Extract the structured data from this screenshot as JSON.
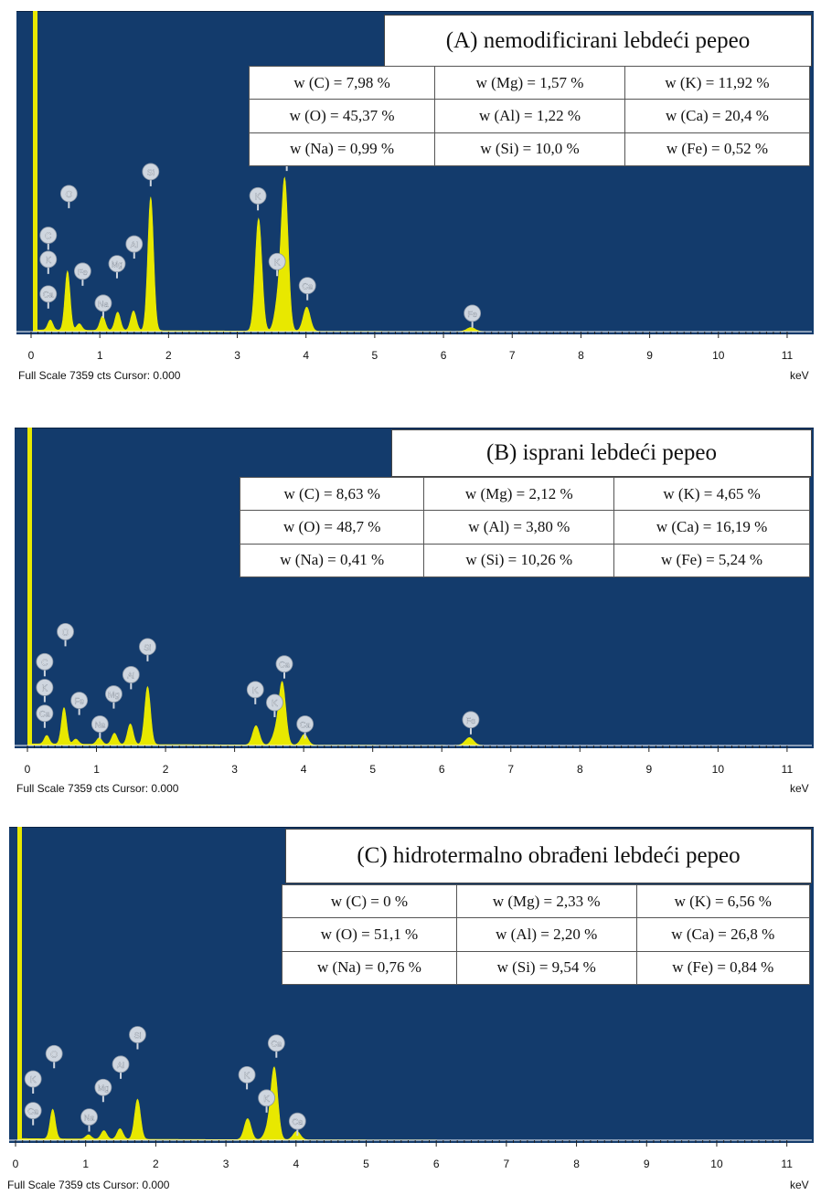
{
  "colors": {
    "plot_bg": "#133b6c",
    "spectrum": "#e8e800",
    "badge": "#cfd6df",
    "axis": "#ffffff"
  },
  "chart_data": [
    {
      "type": "area",
      "title": "(A) nemodificirani lebdeći pepeo",
      "xlabel": "keV",
      "xlim": [
        0,
        11.2
      ],
      "ylim": [
        0,
        7359
      ],
      "x_ticks": [
        "0",
        "1",
        "2",
        "3",
        "4",
        "5",
        "6",
        "7",
        "8",
        "9",
        "10",
        "11"
      ],
      "footer": "Full Scale 7359 cts Cursor: 0.000",
      "composition": [
        [
          "w (C) = 7,98 %",
          "w (Mg) = 1,57 %",
          "w (K) = 11,92 %"
        ],
        [
          "w (O) = 45,37 %",
          "w (Al) = 1,22 %",
          "w (Ca) = 20,4 %"
        ],
        [
          "w (Na) = 0,99 %",
          "w (Si) = 10,0 %",
          "w (Fe) = 0,52 %"
        ]
      ],
      "peaks": [
        {
          "label": "C",
          "x": 0.28,
          "y": 230
        },
        {
          "label": "O",
          "x": 0.53,
          "y": 1350
        },
        {
          "label": "Na",
          "x": 1.04,
          "y": 330
        },
        {
          "label": "Mg",
          "x": 1.26,
          "y": 420
        },
        {
          "label": "Al",
          "x": 1.49,
          "y": 450
        },
        {
          "label": "Si",
          "x": 1.74,
          "y": 3050
        },
        {
          "label": "K",
          "x": 3.31,
          "y": 2570
        },
        {
          "label": "K",
          "x": 3.59,
          "y": 600
        },
        {
          "label": "Ca",
          "x": 3.69,
          "y": 3430
        },
        {
          "label": "Ca",
          "x": 4.01,
          "y": 550
        },
        {
          "label": "Fe",
          "x": 6.4,
          "y": 90
        },
        {
          "label": "Fe",
          "x": 0.7,
          "y": 150
        }
      ],
      "badges": [
        {
          "label": "C",
          "x": 0.25,
          "y": 2200
        },
        {
          "label": "O",
          "x": 0.55,
          "y": 3150
        },
        {
          "label": "K",
          "x": 0.25,
          "y": 1650
        },
        {
          "label": "Ca",
          "x": 0.25,
          "y": 860
        },
        {
          "label": "Fe",
          "x": 0.75,
          "y": 1380
        },
        {
          "label": "Na",
          "x": 1.05,
          "y": 650
        },
        {
          "label": "Mg",
          "x": 1.25,
          "y": 1550
        },
        {
          "label": "Al",
          "x": 1.5,
          "y": 2000
        },
        {
          "label": "Si",
          "x": 1.74,
          "y": 3650
        },
        {
          "label": "K",
          "x": 3.3,
          "y": 3100
        },
        {
          "label": "Ca",
          "x": 3.72,
          "y": 4000
        },
        {
          "label": "K",
          "x": 3.58,
          "y": 1600
        },
        {
          "label": "Ca",
          "x": 4.02,
          "y": 1050
        },
        {
          "label": "Fe",
          "x": 6.42,
          "y": 420
        }
      ]
    },
    {
      "type": "area",
      "title": "(B) isprani lebdeći pepeo",
      "xlabel": "keV",
      "xlim": [
        0,
        11.2
      ],
      "ylim": [
        0,
        7359
      ],
      "x_ticks": [
        "0",
        "1",
        "2",
        "3",
        "4",
        "5",
        "6",
        "7",
        "8",
        "9",
        "10",
        "11"
      ],
      "footer": "Full Scale 7359 cts Cursor: 0.000",
      "composition": [
        [
          "w (C) = 8,63 %",
          "w (Mg) = 2,12 %",
          "w (K) = 4,65 %"
        ],
        [
          "w (O) = 48,7 %",
          "w (Al) = 3,80 %",
          "w (Ca) = 16,19 %"
        ],
        [
          "w (Na) = 0,41 %",
          "w (Si) = 10,26 %",
          "w (Fe) = 5,24 %"
        ]
      ],
      "peaks": [
        {
          "label": "C",
          "x": 0.28,
          "y": 200
        },
        {
          "label": "O",
          "x": 0.53,
          "y": 850
        },
        {
          "label": "Na",
          "x": 1.04,
          "y": 150
        },
        {
          "label": "Mg",
          "x": 1.26,
          "y": 260
        },
        {
          "label": "Al",
          "x": 1.49,
          "y": 480
        },
        {
          "label": "Si",
          "x": 1.74,
          "y": 1350
        },
        {
          "label": "K",
          "x": 3.31,
          "y": 450
        },
        {
          "label": "K",
          "x": 3.59,
          "y": 250
        },
        {
          "label": "Ca",
          "x": 3.69,
          "y": 1450
        },
        {
          "label": "Ca",
          "x": 4.01,
          "y": 250
        },
        {
          "label": "Fe",
          "x": 6.4,
          "y": 180
        },
        {
          "label": "Fe",
          "x": 0.7,
          "y": 120
        }
      ],
      "badges": [
        {
          "label": "C",
          "x": 0.25,
          "y": 1950
        },
        {
          "label": "O",
          "x": 0.55,
          "y": 2650
        },
        {
          "label": "K",
          "x": 0.25,
          "y": 1350
        },
        {
          "label": "Ca",
          "x": 0.25,
          "y": 750
        },
        {
          "label": "Fe",
          "x": 0.75,
          "y": 1050
        },
        {
          "label": "Na",
          "x": 1.05,
          "y": 500
        },
        {
          "label": "Mg",
          "x": 1.25,
          "y": 1200
        },
        {
          "label": "Al",
          "x": 1.5,
          "y": 1650
        },
        {
          "label": "Si",
          "x": 1.74,
          "y": 2300
        },
        {
          "label": "K",
          "x": 3.3,
          "y": 1300
        },
        {
          "label": "Ca",
          "x": 3.72,
          "y": 1900
        },
        {
          "label": "K",
          "x": 3.58,
          "y": 1000
        },
        {
          "label": "Ca",
          "x": 4.02,
          "y": 500
        },
        {
          "label": "Fe",
          "x": 6.42,
          "y": 600
        }
      ]
    },
    {
      "type": "area",
      "title": "(C) hidrotermalno obrađeni lebdeći pepeo",
      "xlabel": "keV",
      "xlim": [
        0,
        11.2
      ],
      "ylim": [
        0,
        7359
      ],
      "x_ticks": [
        "0",
        "1",
        "2",
        "3",
        "4",
        "5",
        "6",
        "7",
        "8",
        "9",
        "10",
        "11"
      ],
      "footer": "Full Scale 7359 cts Cursor: 0.000",
      "composition": [
        [
          "w (C) = 0 %",
          "w (Mg) = 2,33 %",
          "w (K) = 6,56 %"
        ],
        [
          "w (O) = 51,1 %",
          "w (Al) = 2,20 %",
          "w (Ca) = 26,8 %"
        ],
        [
          "w (Na) = 0,76 %",
          "w (Si) = 9,54 %",
          "w (Fe) = 0,84 %"
        ]
      ],
      "peaks": [
        {
          "label": "O",
          "x": 0.53,
          "y": 700
        },
        {
          "label": "Na",
          "x": 1.04,
          "y": 100
        },
        {
          "label": "Mg",
          "x": 1.26,
          "y": 200
        },
        {
          "label": "Al",
          "x": 1.49,
          "y": 250
        },
        {
          "label": "Si",
          "x": 1.74,
          "y": 950
        },
        {
          "label": "K",
          "x": 3.31,
          "y": 500
        },
        {
          "label": "K",
          "x": 3.59,
          "y": 200
        },
        {
          "label": "Ca",
          "x": 3.69,
          "y": 1700
        },
        {
          "label": "Ca",
          "x": 4.01,
          "y": 200
        }
      ],
      "badges": [
        {
          "label": "O",
          "x": 0.55,
          "y": 2050
        },
        {
          "label": "K",
          "x": 0.25,
          "y": 1450
        },
        {
          "label": "Ca",
          "x": 0.25,
          "y": 700
        },
        {
          "label": "Na",
          "x": 1.05,
          "y": 550
        },
        {
          "label": "Mg",
          "x": 1.25,
          "y": 1250
        },
        {
          "label": "Al",
          "x": 1.5,
          "y": 1800
        },
        {
          "label": "Si",
          "x": 1.74,
          "y": 2500
        },
        {
          "label": "K",
          "x": 3.3,
          "y": 1550
        },
        {
          "label": "Ca",
          "x": 3.72,
          "y": 2300
        },
        {
          "label": "K",
          "x": 3.58,
          "y": 1000
        },
        {
          "label": "Ca",
          "x": 4.02,
          "y": 450
        }
      ]
    }
  ]
}
